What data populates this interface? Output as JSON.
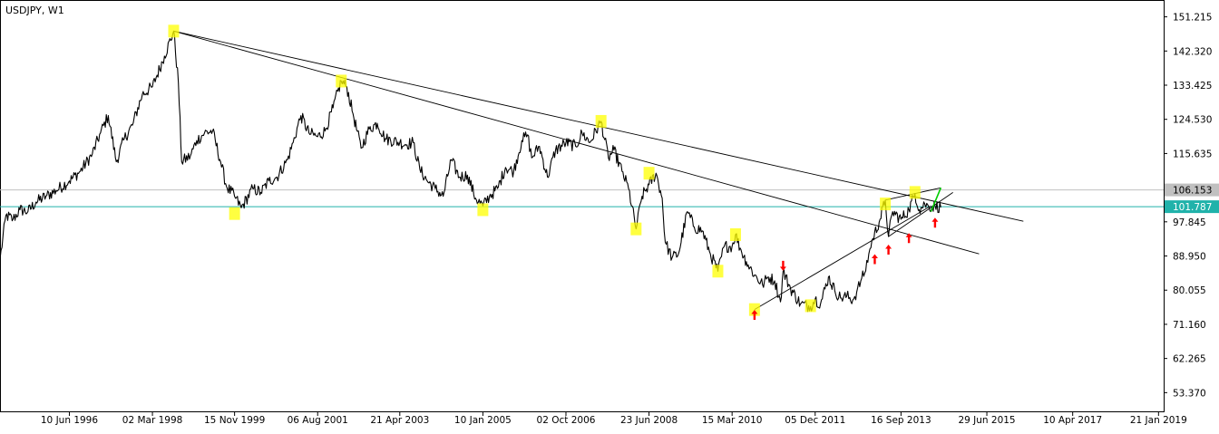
{
  "window": {
    "title": "USDJPY, W1",
    "background": "#ffffff",
    "axis_color": "#000000",
    "grid": false
  },
  "chart_data": {
    "type": "line",
    "symbol": "USDJPY",
    "timeframe": "W1",
    "ylim": [
      48.5,
      155.6
    ],
    "xlim": [
      "1995-01-01",
      "2019-03-01"
    ],
    "y_ticks": [
      "151.215",
      "142.320",
      "133.425",
      "124.530",
      "115.635",
      "106.153",
      "97.845",
      "88.950",
      "80.055",
      "71.160",
      "62.265",
      "53.370"
    ],
    "x_ticks": [
      {
        "date": "1996-06-10",
        "label": "10 Jun 1996"
      },
      {
        "date": "1998-03-02",
        "label": "02 Mar 1998"
      },
      {
        "date": "1999-11-15",
        "label": "15 Nov 1999"
      },
      {
        "date": "2001-08-06",
        "label": "06 Aug 2001"
      },
      {
        "date": "2003-04-21",
        "label": "21 Apr 2003"
      },
      {
        "date": "2005-01-10",
        "label": "10 Jan 2005"
      },
      {
        "date": "2006-10-02",
        "label": "02 Oct 2006"
      },
      {
        "date": "2008-06-23",
        "label": "23 Jun 2008"
      },
      {
        "date": "2010-03-15",
        "label": "15 Mar 2010"
      },
      {
        "date": "2011-12-05",
        "label": "05 Dec 2011"
      },
      {
        "date": "2013-09-16",
        "label": "16 Sep 2013"
      },
      {
        "date": "2015-06-29",
        "label": "29 Jun 2015"
      },
      {
        "date": "2017-04-10",
        "label": "10 Apr 2017"
      },
      {
        "date": "2019-01-21",
        "label": "21 Jan 2019"
      }
    ],
    "price_labels": [
      {
        "value": 106.153,
        "text": "106.153",
        "bg": "#c0c0c0",
        "fg": "#000000",
        "line": "#c0c0c0"
      },
      {
        "value": 101.787,
        "text": "101.787",
        "bg": "#20b2aa",
        "fg": "#ffffff",
        "line": "#20b2aa"
      }
    ],
    "series": [
      {
        "color": "#000000",
        "points": [
          [
            "1995-01-01",
            88.0
          ],
          [
            "1995-02-15",
            99.5
          ],
          [
            "1995-04-10",
            98.5
          ],
          [
            "1995-06-01",
            101.0
          ],
          [
            "1995-08-01",
            100.5
          ],
          [
            "1995-10-01",
            103.0
          ],
          [
            "1995-12-15",
            104.5
          ],
          [
            "1996-03-01",
            106.0
          ],
          [
            "1996-06-10",
            108.5
          ],
          [
            "1996-09-01",
            111.0
          ],
          [
            "1996-12-01",
            115.5
          ],
          [
            "1997-02-01",
            121.0
          ],
          [
            "1997-04-01",
            125.5
          ],
          [
            "1997-06-01",
            113.5
          ],
          [
            "1997-08-01",
            119.5
          ],
          [
            "1997-10-01",
            123.0
          ],
          [
            "1997-12-15",
            131.0
          ],
          [
            "1998-03-02",
            133.0
          ],
          [
            "1998-06-01",
            141.0
          ],
          [
            "1998-08-10",
            147.5
          ],
          [
            "1998-09-15",
            134.0
          ],
          [
            "1998-10-10",
            113.5
          ],
          [
            "1998-12-15",
            115.0
          ],
          [
            "1999-02-01",
            119.0
          ],
          [
            "1999-04-01",
            121.0
          ],
          [
            "1999-06-01",
            121.5
          ],
          [
            "1999-08-01",
            113.5
          ],
          [
            "1999-09-15",
            107.0
          ],
          [
            "1999-11-15",
            104.5
          ],
          [
            "2000-01-05",
            101.5
          ],
          [
            "2000-04-01",
            106.5
          ],
          [
            "2000-06-01",
            105.5
          ],
          [
            "2000-08-01",
            108.5
          ],
          [
            "2000-10-01",
            109.5
          ],
          [
            "2000-12-20",
            114.0
          ],
          [
            "2001-02-01",
            118.5
          ],
          [
            "2001-04-01",
            125.5
          ],
          [
            "2001-06-01",
            121.0
          ],
          [
            "2001-08-06",
            120.0
          ],
          [
            "2001-10-01",
            121.5
          ],
          [
            "2001-12-01",
            127.5
          ],
          [
            "2002-02-01",
            134.5
          ],
          [
            "2002-03-15",
            133.0
          ],
          [
            "2002-05-01",
            126.0
          ],
          [
            "2002-07-01",
            117.0
          ],
          [
            "2002-09-01",
            122.0
          ],
          [
            "2002-11-01",
            123.5
          ],
          [
            "2003-01-01",
            119.5
          ],
          [
            "2003-04-21",
            118.5
          ],
          [
            "2003-06-01",
            118.0
          ],
          [
            "2003-08-01",
            118.5
          ],
          [
            "2003-09-20",
            111.5
          ],
          [
            "2003-11-15",
            108.5
          ],
          [
            "2004-01-15",
            106.5
          ],
          [
            "2004-03-15",
            104.5
          ],
          [
            "2004-05-15",
            114.0
          ],
          [
            "2004-07-15",
            109.5
          ],
          [
            "2004-09-15",
            110.0
          ],
          [
            "2004-11-15",
            104.0
          ],
          [
            "2005-01-10",
            102.0
          ],
          [
            "2005-03-01",
            104.5
          ],
          [
            "2005-05-01",
            106.5
          ],
          [
            "2005-07-01",
            112.0
          ],
          [
            "2005-09-01",
            111.0
          ],
          [
            "2005-11-01",
            119.0
          ],
          [
            "2005-12-15",
            120.5
          ],
          [
            "2006-01-15",
            114.5
          ],
          [
            "2006-03-15",
            117.5
          ],
          [
            "2006-05-15",
            109.5
          ],
          [
            "2006-07-15",
            116.5
          ],
          [
            "2006-10-02",
            118.5
          ],
          [
            "2006-12-15",
            117.5
          ],
          [
            "2007-02-01",
            121.0
          ],
          [
            "2007-04-01",
            118.5
          ],
          [
            "2007-06-25",
            124.0
          ],
          [
            "2007-08-20",
            114.5
          ],
          [
            "2007-10-01",
            116.5
          ],
          [
            "2007-12-01",
            111.0
          ],
          [
            "2008-01-20",
            106.5
          ],
          [
            "2008-03-17",
            96.0
          ],
          [
            "2008-05-01",
            104.5
          ],
          [
            "2008-06-23",
            107.5
          ],
          [
            "2008-08-15",
            110.5
          ],
          [
            "2008-10-01",
            104.0
          ],
          [
            "2008-10-24",
            92.5
          ],
          [
            "2008-12-15",
            88.5
          ],
          [
            "2009-02-01",
            89.5
          ],
          [
            "2009-04-10",
            100.5
          ],
          [
            "2009-06-01",
            96.5
          ],
          [
            "2009-08-01",
            95.5
          ],
          [
            "2009-10-01",
            89.5
          ],
          [
            "2009-11-27",
            85.0
          ],
          [
            "2010-01-15",
            91.5
          ],
          [
            "2010-03-15",
            91.5
          ],
          [
            "2010-04-10",
            94.5
          ],
          [
            "2010-05-15",
            91.0
          ],
          [
            "2010-07-01",
            87.5
          ],
          [
            "2010-09-01",
            84.0
          ],
          [
            "2010-11-01",
            81.5
          ],
          [
            "2010-12-15",
            83.5
          ],
          [
            "2011-02-01",
            82.5
          ],
          [
            "2011-03-17",
            77.0
          ],
          [
            "2011-04-06",
            85.0
          ],
          [
            "2011-06-01",
            80.5
          ],
          [
            "2011-08-15",
            76.5
          ],
          [
            "2011-10-31",
            75.8
          ],
          [
            "2011-12-05",
            77.8
          ],
          [
            "2012-01-15",
            76.5
          ],
          [
            "2012-03-15",
            83.5
          ],
          [
            "2012-05-01",
            80.0
          ],
          [
            "2012-06-15",
            78.0
          ],
          [
            "2012-08-01",
            78.5
          ],
          [
            "2012-09-15",
            77.5
          ],
          [
            "2012-10-15",
            79.5
          ],
          [
            "2012-11-15",
            82.5
          ],
          [
            "2012-12-15",
            84.5
          ],
          [
            "2013-01-15",
            89.5
          ],
          [
            "2013-02-15",
            93.5
          ],
          [
            "2013-04-10",
            98.5
          ],
          [
            "2013-05-20",
            103.5
          ],
          [
            "2013-06-13",
            94.0
          ],
          [
            "2013-07-15",
            100.5
          ],
          [
            "2013-09-16",
            98.5
          ],
          [
            "2013-11-15",
            101.0
          ],
          [
            "2013-12-31",
            105.2
          ],
          [
            "2014-02-01",
            101.0
          ],
          [
            "2014-03-15",
            102.5
          ],
          [
            "2014-04-15",
            101.8
          ],
          [
            "2014-06-01",
            102.0
          ],
          [
            "2014-07-15",
            101.6
          ]
        ]
      }
    ],
    "trendlines": [
      {
        "from": [
          "1998-08-10",
          147.5
        ],
        "to": [
          "2016-04-01",
          98.0
        ],
        "color": "#000000"
      },
      {
        "from": [
          "1998-08-10",
          147.5
        ],
        "to": [
          "2015-05-01",
          89.5
        ],
        "color": "#000000"
      },
      {
        "from": [
          "2010-09-01",
          75.0
        ],
        "to": [
          "2014-05-01",
          102.0
        ],
        "color": "#000000"
      },
      {
        "from": [
          "2013-05-20",
          103.5
        ],
        "to": [
          "2014-07-15",
          106.7
        ],
        "color": "#000000"
      },
      {
        "from": [
          "2013-06-13",
          94.0
        ],
        "to": [
          "2014-10-15",
          105.5
        ],
        "color": "#000000"
      },
      {
        "from": [
          "2014-05-01",
          100.5
        ],
        "to": [
          "2014-07-15",
          106.7
        ],
        "color": "#00cc00"
      }
    ],
    "highlights": [
      {
        "date": "1998-08-10",
        "value": 147.5
      },
      {
        "date": "1999-11-15",
        "value": 100.0
      },
      {
        "date": "2002-02-01",
        "value": 134.5
      },
      {
        "date": "2005-01-10",
        "value": 101.0
      },
      {
        "date": "2007-06-25",
        "value": 124.0
      },
      {
        "date": "2008-03-17",
        "value": 96.0
      },
      {
        "date": "2008-06-23",
        "value": 110.5
      },
      {
        "date": "2009-11-27",
        "value": 85.0
      },
      {
        "date": "2010-04-10",
        "value": 94.5
      },
      {
        "date": "2010-09-01",
        "value": 75.0
      },
      {
        "date": "2011-10-31",
        "value": 76.0
      },
      {
        "date": "2013-05-20",
        "value": 102.5
      },
      {
        "date": "2013-12-31",
        "value": 105.5
      }
    ],
    "arrows": [
      {
        "date": "2010-09-01",
        "value": 73.5,
        "dir": "up",
        "color": "#ff0000"
      },
      {
        "date": "2011-04-06",
        "value": 86.5,
        "dir": "down",
        "color": "#ff0000"
      },
      {
        "date": "2013-03-01",
        "value": 88.0,
        "dir": "up",
        "color": "#ff0000"
      },
      {
        "date": "2013-06-13",
        "value": 90.5,
        "dir": "up",
        "color": "#ff0000"
      },
      {
        "date": "2013-11-15",
        "value": 93.5,
        "dir": "up",
        "color": "#ff0000"
      },
      {
        "date": "2014-06-01",
        "value": 97.5,
        "dir": "up",
        "color": "#ff0000"
      }
    ]
  }
}
